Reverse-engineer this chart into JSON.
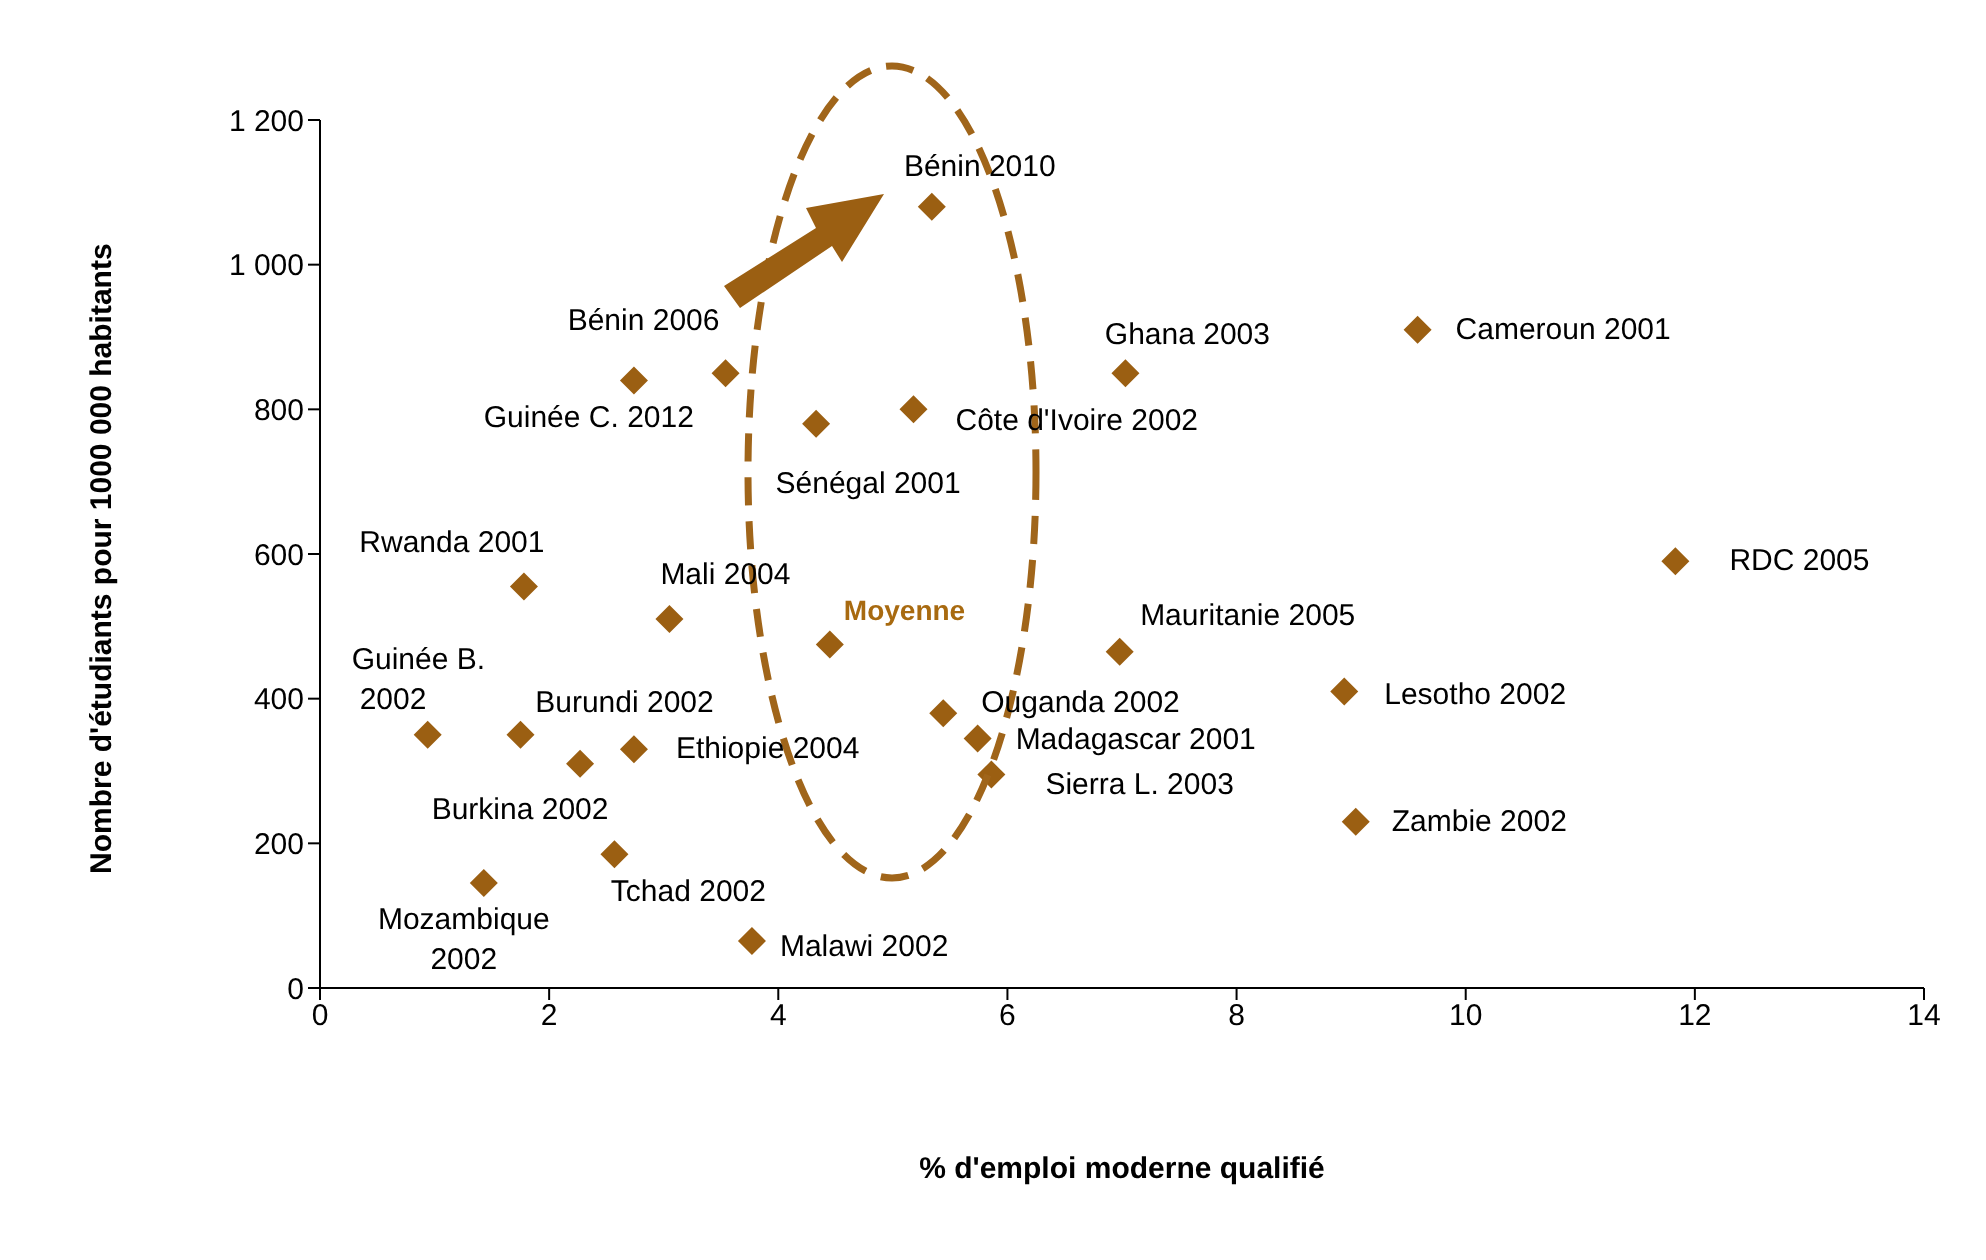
{
  "chart_data": {
    "type": "scatter",
    "xlabel": "% d'emploi moderne qualifié",
    "ylabel": "Nombre d'étudiants pour 1000 000 habitants",
    "x": [
      5.34,
      9.58,
      7.03,
      3.54,
      2.74,
      5.18,
      4.33,
      11.83,
      1.78,
      3.05,
      4.45,
      6.98,
      8.94,
      5.44,
      0.94,
      1.75,
      5.74,
      2.74,
      2.27,
      5.86,
      9.04,
      2.57,
      1.43,
      3.77
    ],
    "values": [
      1080,
      910,
      850,
      850,
      840,
      800,
      780,
      590,
      555,
      510,
      475,
      465,
      410,
      380,
      350,
      350,
      345,
      330,
      310,
      295,
      230,
      185,
      145,
      65
    ],
    "color": "#9b5f12",
    "marker": "diamond",
    "xlim": [
      0,
      14
    ],
    "xticks": [
      0,
      2,
      4,
      6,
      8,
      10,
      12,
      14
    ],
    "ylim": [
      0,
      1200
    ],
    "yticks": [
      0,
      200,
      400,
      600,
      800,
      {
        "value": 1000,
        "label": "1 000"
      },
      {
        "value": 1200,
        "label": "1 200"
      }
    ],
    "annotations": [
      {
        "text": "Bénin 2010",
        "x": 5.34,
        "y": 1080
      },
      {
        "text": "Cameroun 2001",
        "x": 9.58,
        "y": 910
      },
      {
        "text": "Ghana 2003",
        "x": 7.03,
        "y": 850
      },
      {
        "text": "Bénin 2006",
        "x": 3.54,
        "y": 850
      },
      {
        "text": "Guinée C. 2012",
        "x": 2.74,
        "y": 840
      },
      {
        "text": "Côte d'Ivoire 2002",
        "x": 5.18,
        "y": 800
      },
      {
        "text": "Sénégal 2001",
        "x": 4.33,
        "y": 780
      },
      {
        "text": "RDC 2005",
        "x": 11.83,
        "y": 590
      },
      {
        "text": "Rwanda 2001",
        "x": 1.78,
        "y": 555
      },
      {
        "text": "Mali 2004",
        "x": 3.05,
        "y": 510
      },
      {
        "text": "Moyenne",
        "x": 4.45,
        "y": 475
      },
      {
        "text": "Mauritanie 2005",
        "x": 6.98,
        "y": 465
      },
      {
        "text": "Lesotho 2002",
        "x": 8.94,
        "y": 410
      },
      {
        "text": "Ouganda 2002",
        "x": 5.44,
        "y": 380
      },
      {
        "text": "Guinée B. 2002",
        "x": 0.94,
        "y": 350
      },
      {
        "text": "Burundi 2002",
        "x": 1.75,
        "y": 350
      },
      {
        "text": "Madagascar 2001",
        "x": 5.74,
        "y": 345
      },
      {
        "text": "Ethiopie 2004",
        "x": 2.74,
        "y": 330
      },
      {
        "text": "Burkina 2002",
        "x": 2.27,
        "y": 310
      },
      {
        "text": "Sierra L. 2003",
        "x": 5.86,
        "y": 295
      },
      {
        "text": "Zambie 2002",
        "x": 9.04,
        "y": 230
      },
      {
        "text": "Tchad 2002",
        "x": 2.57,
        "y": 185
      },
      {
        "text": "Mozambique 2002",
        "x": 1.43,
        "y": 145
      },
      {
        "text": "Malawi 2002",
        "x": 3.77,
        "y": 65
      }
    ]
  }
}
